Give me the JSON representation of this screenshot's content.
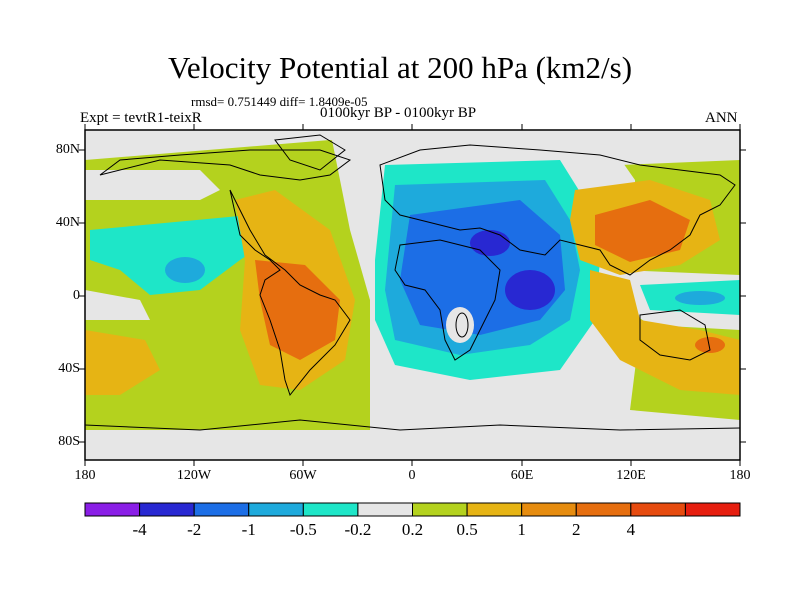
{
  "title": "Velocity Potential at 200 hPa (km2/s)",
  "stats": "rmsd= 0.751449 diff= 1.8409e-05",
  "experiment": "Expt = tevtR1-teixR",
  "period": "0100kyr BP - 0100kyr BP",
  "season": "ANN",
  "lon_labels": [
    "180",
    "120W",
    "60W",
    "0",
    "60E",
    "120E",
    "180"
  ],
  "lat_labels": [
    "80N",
    "40N",
    "0",
    "40S",
    "80S"
  ],
  "colorbar": {
    "colors": [
      "#8a1ee6",
      "#2828d2",
      "#1c6ee6",
      "#1eaadc",
      "#1ee6c8",
      "#e6e6e6",
      "#b4d21e",
      "#e6b414",
      "#e68c0f",
      "#e66e0f",
      "#e64b0f",
      "#e61e0f"
    ],
    "labels": [
      "-4",
      "-2",
      "-1",
      "-0.5",
      "-0.2",
      "0.2",
      "0.5",
      "1",
      "2",
      "4"
    ]
  }
}
